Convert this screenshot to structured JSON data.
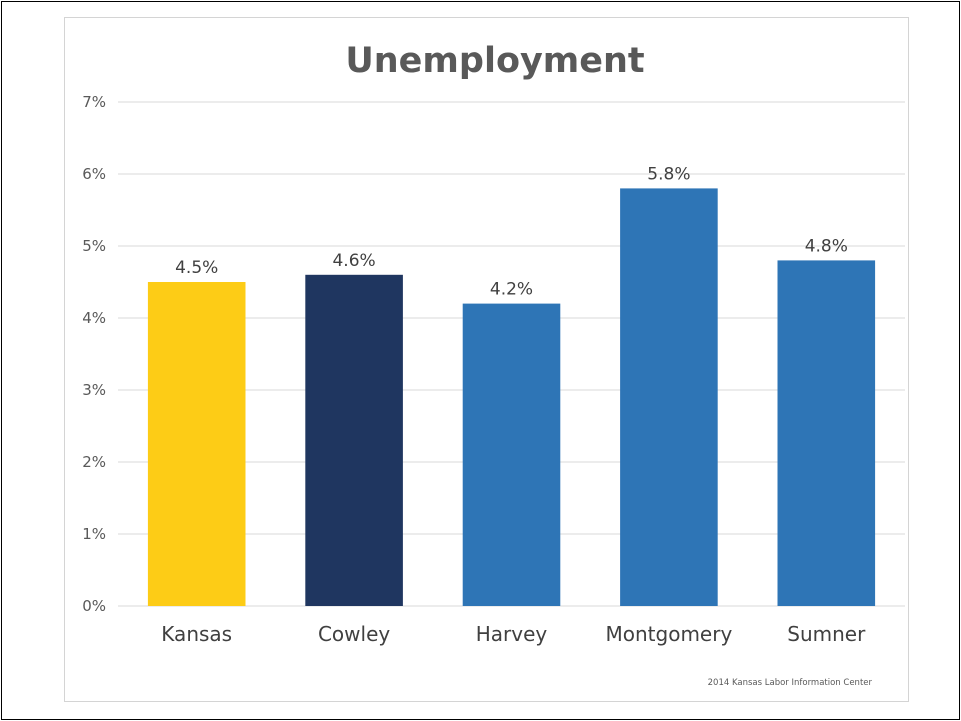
{
  "chart_data": {
    "type": "bar",
    "title": "Unemployment",
    "categories": [
      "Kansas",
      "Cowley",
      "Harvey",
      "Montgomery",
      "Sumner"
    ],
    "values": [
      4.5,
      4.6,
      4.2,
      5.8,
      4.8
    ],
    "data_labels": [
      "4.5%",
      "4.6%",
      "4.2%",
      "5.8%",
      "4.8%"
    ],
    "bar_colors": [
      "#fdcc16",
      "#1f3660",
      "#2e75b6",
      "#2e75b6",
      "#2e75b6"
    ],
    "ylim": [
      0,
      7
    ],
    "y_ticks": [
      0,
      1,
      2,
      3,
      4,
      5,
      6,
      7
    ],
    "y_tick_labels": [
      "0%",
      "1%",
      "2%",
      "3%",
      "4%",
      "5%",
      "6%",
      "7%"
    ],
    "xlabel": "",
    "ylabel": "",
    "grid": true,
    "legend": "none"
  },
  "source_note": "2014 Kansas Labor Information Center"
}
